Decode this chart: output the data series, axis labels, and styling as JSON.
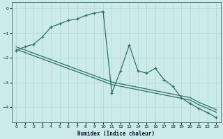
{
  "xlabel": "Humidex (Indice chaleur)",
  "background_color": "#cceae8",
  "grid_color": "#add5d2",
  "line_color": "#2d7068",
  "xlim": [
    -0.5,
    23.5
  ],
  "ylim": [
    -4.6,
    0.25
  ],
  "yticks": [
    0,
    -1,
    -2,
    -3,
    -4
  ],
  "xticks": [
    0,
    1,
    2,
    3,
    4,
    5,
    6,
    7,
    8,
    9,
    10,
    11,
    12,
    13,
    14,
    15,
    16,
    17,
    18,
    19,
    20,
    21,
    22,
    23
  ],
  "reg1_x": [
    0,
    1,
    2,
    3,
    4,
    5,
    6,
    7,
    8,
    9,
    10,
    11,
    12,
    13,
    14,
    15,
    16,
    17,
    18,
    19,
    20,
    21,
    22,
    23
  ],
  "reg1_y": [
    -1.65,
    -1.78,
    -1.91,
    -2.04,
    -2.17,
    -2.3,
    -2.43,
    -2.56,
    -2.69,
    -2.82,
    -2.95,
    -3.08,
    -3.15,
    -3.22,
    -3.29,
    -3.36,
    -3.43,
    -3.5,
    -3.57,
    -3.64,
    -3.71,
    -3.9,
    -4.05,
    -4.2
  ],
  "reg2_x": [
    0,
    1,
    2,
    3,
    4,
    5,
    6,
    7,
    8,
    9,
    10,
    11,
    12,
    13,
    14,
    15,
    16,
    17,
    18,
    19,
    20,
    21,
    22,
    23
  ],
  "reg2_y": [
    -1.55,
    -1.68,
    -1.81,
    -1.94,
    -2.07,
    -2.2,
    -2.33,
    -2.46,
    -2.59,
    -2.72,
    -2.85,
    -2.98,
    -3.05,
    -3.12,
    -3.19,
    -3.26,
    -3.33,
    -3.4,
    -3.47,
    -3.54,
    -3.61,
    -3.8,
    -3.95,
    -4.1
  ],
  "data_x": [
    0,
    1,
    2,
    3,
    4,
    5,
    6,
    7,
    8,
    9,
    10,
    11,
    12,
    13,
    14,
    15,
    16,
    17,
    18,
    19,
    20,
    21,
    22,
    23
  ],
  "data_y": [
    -1.7,
    -1.55,
    -1.45,
    -1.15,
    -0.75,
    -0.62,
    -0.48,
    -0.42,
    -0.28,
    -0.18,
    -0.12,
    -3.42,
    -2.52,
    -1.48,
    -2.52,
    -2.62,
    -2.42,
    -2.88,
    -3.15,
    -3.62,
    -3.85,
    -4.05,
    -4.22,
    -4.42
  ]
}
